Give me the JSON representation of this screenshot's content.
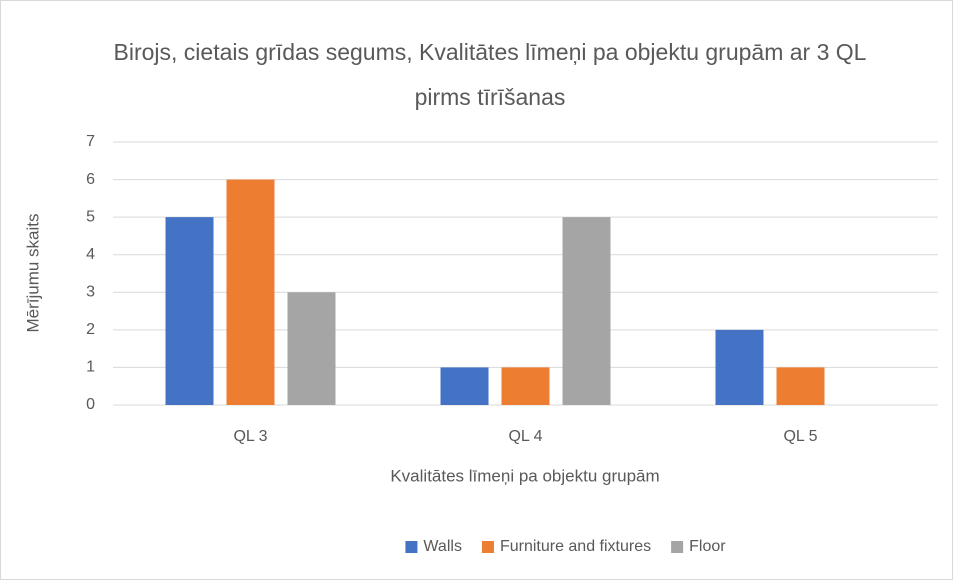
{
  "chart_data": {
    "type": "bar",
    "title": "Birojs, cietais grīdas segums, Kvalitātes līmeņi pa objektu grupām ar 3 QL pirms tīrīšanas",
    "x_label": "Kvalitātes līmeņi pa objektu grupām",
    "y_label": "Mērījumu skaits",
    "categories": [
      "QL 3",
      "QL 4",
      "QL 5"
    ],
    "series": [
      {
        "name": "Walls",
        "color": "#4472c4",
        "values": [
          5,
          1,
          2
        ]
      },
      {
        "name": "Furniture and fixtures",
        "color": "#ed7d31",
        "values": [
          6,
          1,
          1
        ]
      },
      {
        "name": "Floor",
        "color": "#a5a5a5",
        "values": [
          3,
          5,
          0
        ]
      }
    ],
    "ylim": [
      0,
      7
    ],
    "yticks": [
      0,
      1,
      2,
      3,
      4,
      5,
      6,
      7
    ],
    "grid": true,
    "legend": "bottom"
  }
}
